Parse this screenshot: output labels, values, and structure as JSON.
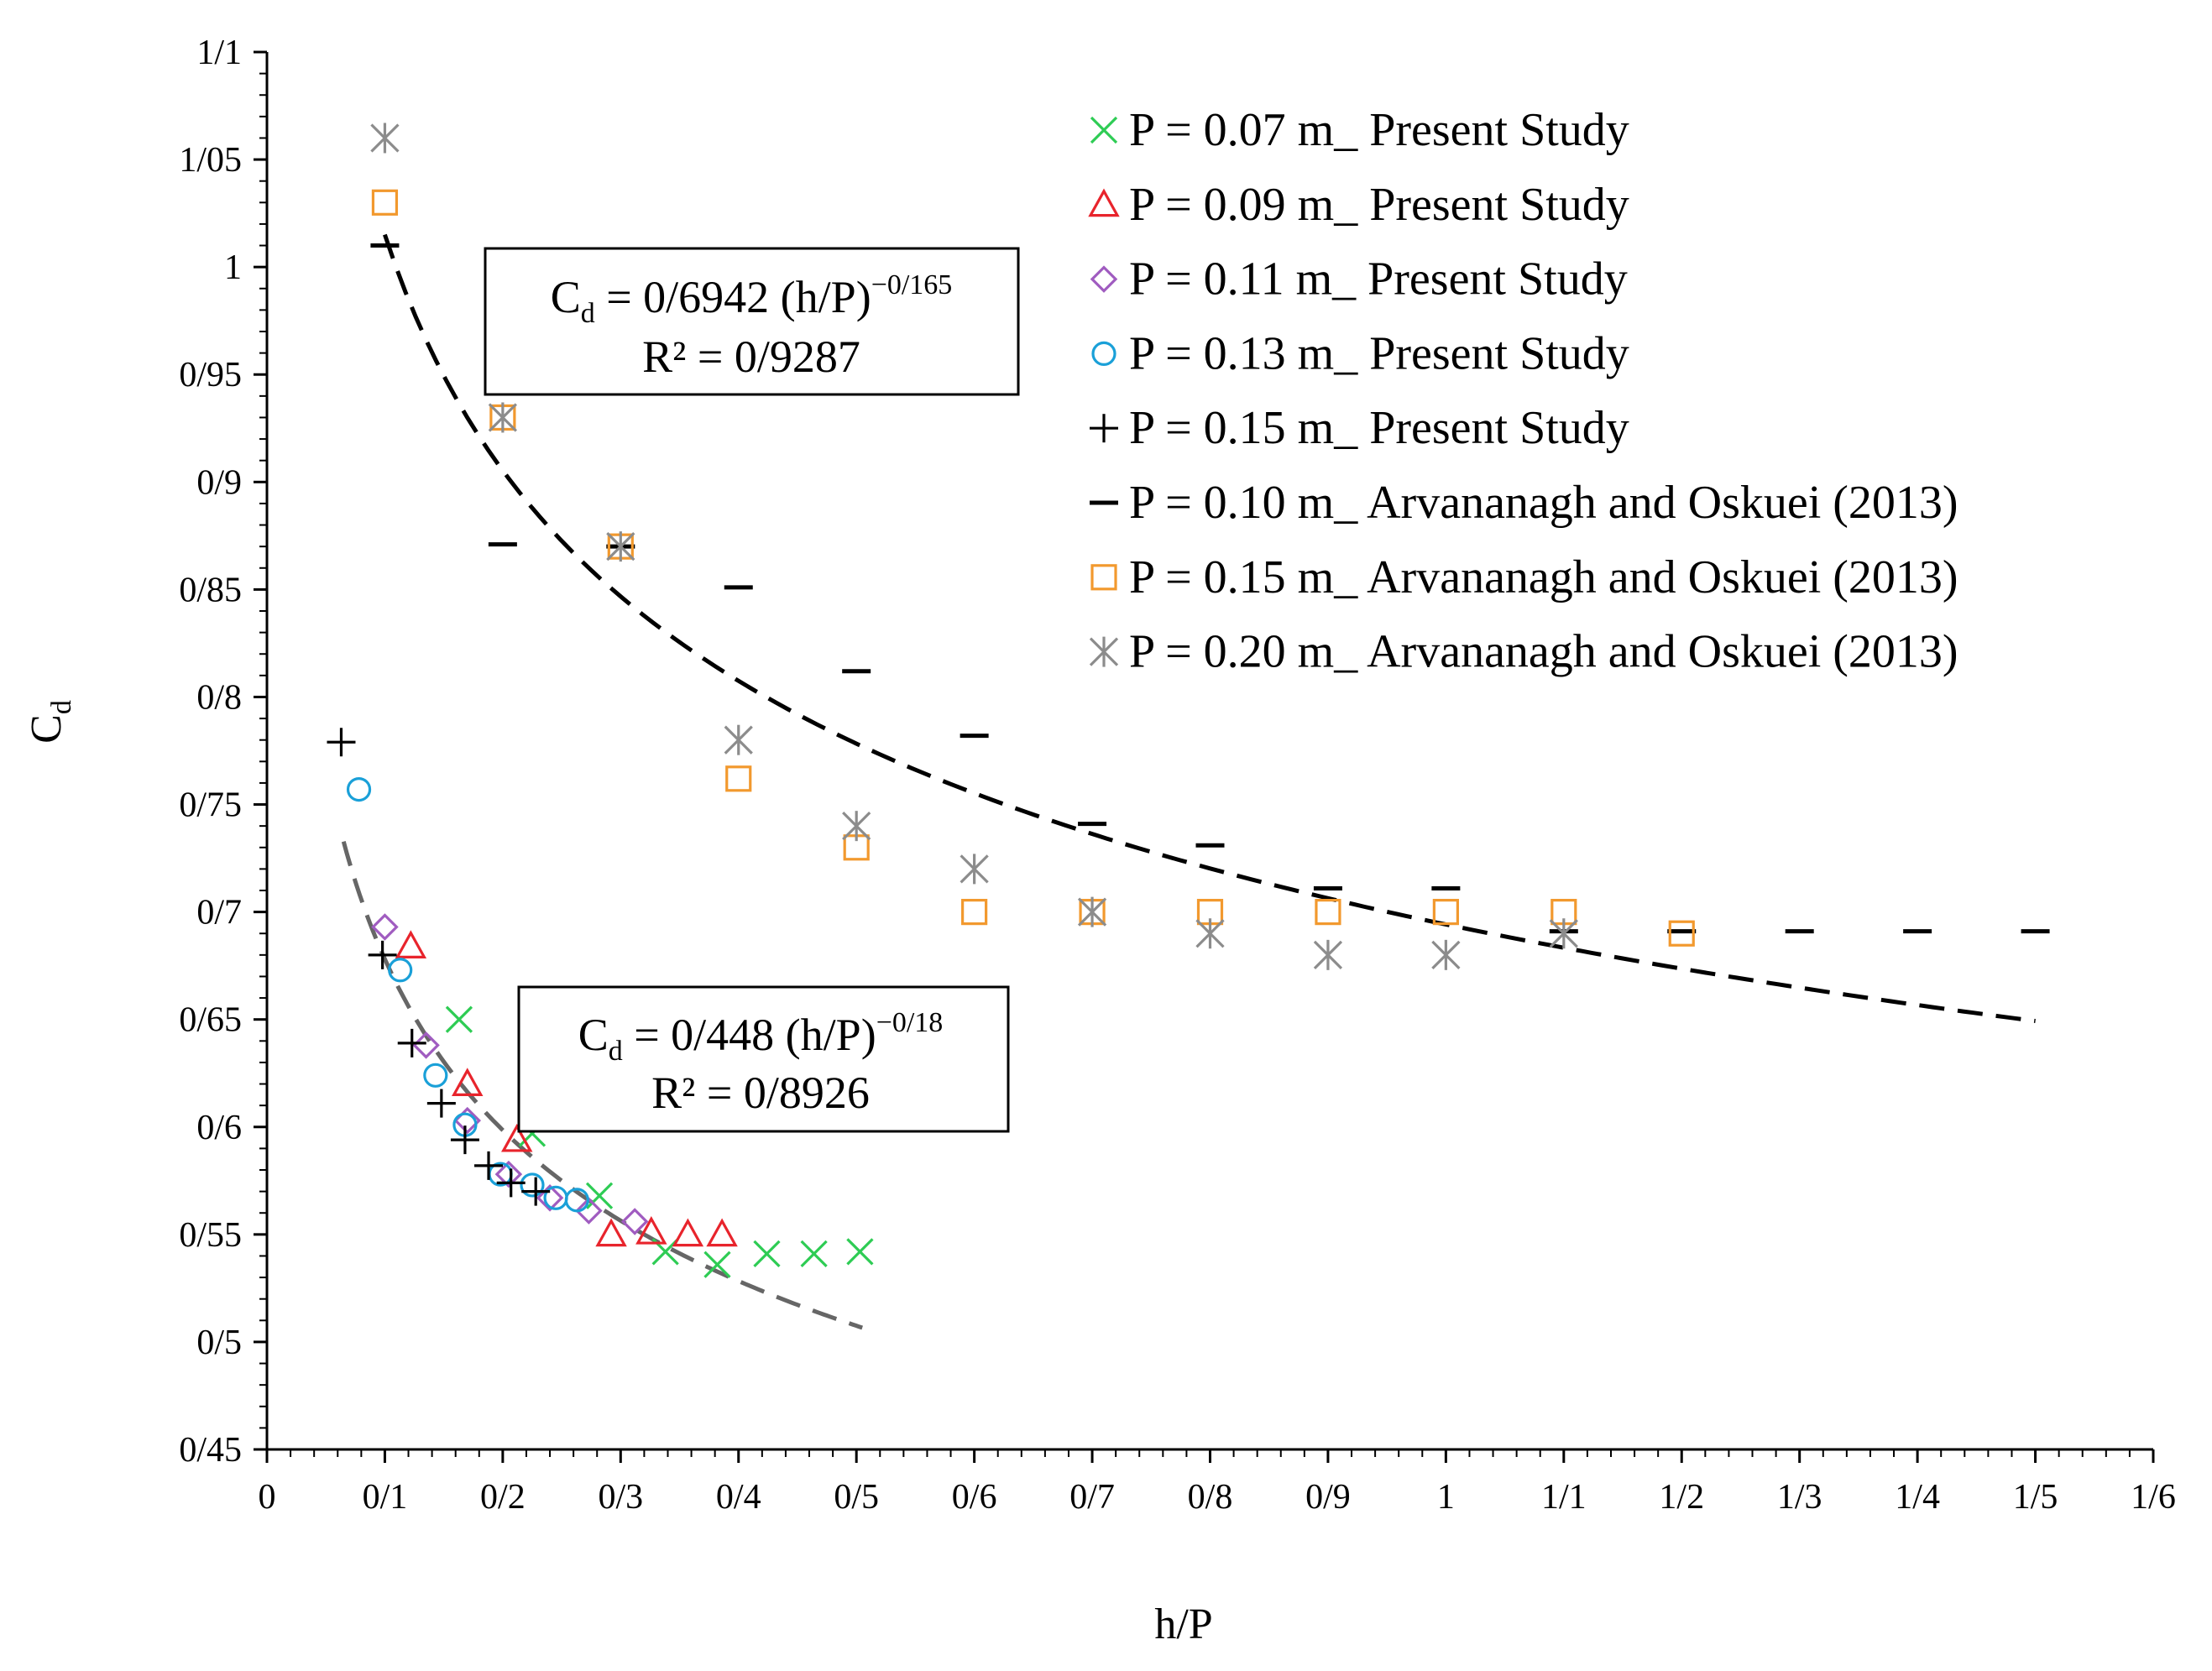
{
  "chart_data": {
    "type": "scatter",
    "xlabel": "h/P",
    "ylabel": {
      "main": "C",
      "sub": "d"
    },
    "xlim": [
      0,
      1.6
    ],
    "ylim": [
      0.45,
      1.1
    ],
    "x_ticks": [
      {
        "v": 0,
        "label": "0"
      },
      {
        "v": 0.1,
        "label": "0/1"
      },
      {
        "v": 0.2,
        "label": "0/2"
      },
      {
        "v": 0.3,
        "label": "0/3"
      },
      {
        "v": 0.4,
        "label": "0/4"
      },
      {
        "v": 0.5,
        "label": "0/5"
      },
      {
        "v": 0.6,
        "label": "0/6"
      },
      {
        "v": 0.7,
        "label": "0/7"
      },
      {
        "v": 0.8,
        "label": "0/8"
      },
      {
        "v": 0.9,
        "label": "0/9"
      },
      {
        "v": 1.0,
        "label": "1"
      },
      {
        "v": 1.1,
        "label": "1/1"
      },
      {
        "v": 1.2,
        "label": "1/2"
      },
      {
        "v": 1.3,
        "label": "1/3"
      },
      {
        "v": 1.4,
        "label": "1/4"
      },
      {
        "v": 1.5,
        "label": "1/5"
      },
      {
        "v": 1.6,
        "label": "1/6"
      }
    ],
    "y_ticks": [
      {
        "v": 0.45,
        "label": "0/45"
      },
      {
        "v": 0.5,
        "label": "0/5"
      },
      {
        "v": 0.55,
        "label": "0/55"
      },
      {
        "v": 0.6,
        "label": "0/6"
      },
      {
        "v": 0.65,
        "label": "0/65"
      },
      {
        "v": 0.7,
        "label": "0/7"
      },
      {
        "v": 0.75,
        "label": "0/75"
      },
      {
        "v": 0.8,
        "label": "0/8"
      },
      {
        "v": 0.85,
        "label": "0/85"
      },
      {
        "v": 0.9,
        "label": "0/9"
      },
      {
        "v": 0.95,
        "label": "0/95"
      },
      {
        "v": 1.0,
        "label": "1"
      },
      {
        "v": 1.05,
        "label": "1/05"
      },
      {
        "v": 1.1,
        "label": "1/1"
      }
    ],
    "series": [
      {
        "name": "P = 0.07 m_ Present Study",
        "marker": "x",
        "color": "#2ecc54",
        "points": [
          [
            0.163,
            0.65
          ],
          [
            0.225,
            0.597
          ],
          [
            0.282,
            0.568
          ],
          [
            0.338,
            0.542
          ],
          [
            0.382,
            0.536
          ],
          [
            0.424,
            0.541
          ],
          [
            0.464,
            0.541
          ],
          [
            0.503,
            0.542
          ]
        ]
      },
      {
        "name": "P = 0.09 m_ Present Study",
        "marker": "triangle",
        "color": "#e8242c",
        "points": [
          [
            0.122,
            0.684
          ],
          [
            0.17,
            0.62
          ],
          [
            0.212,
            0.594
          ],
          [
            0.292,
            0.55
          ],
          [
            0.326,
            0.551
          ],
          [
            0.357,
            0.55
          ],
          [
            0.386,
            0.55
          ]
        ]
      },
      {
        "name": "P = 0.11 m_ Present Study",
        "marker": "diamond",
        "color": "#a05cc0",
        "points": [
          [
            0.1,
            0.693
          ],
          [
            0.135,
            0.638
          ],
          [
            0.17,
            0.603
          ],
          [
            0.205,
            0.578
          ],
          [
            0.24,
            0.567
          ],
          [
            0.273,
            0.561
          ],
          [
            0.312,
            0.556
          ]
        ]
      },
      {
        "name": "P = 0.13 m_ Present Study",
        "marker": "circle",
        "color": "#1aa0d8",
        "points": [
          [
            0.078,
            0.757
          ],
          [
            0.113,
            0.673
          ],
          [
            0.143,
            0.624
          ],
          [
            0.168,
            0.601
          ],
          [
            0.198,
            0.578
          ],
          [
            0.225,
            0.573
          ],
          [
            0.245,
            0.567
          ],
          [
            0.263,
            0.566
          ]
        ]
      },
      {
        "name": "P = 0.15 m_ Present Study",
        "marker": "plus",
        "color": "#000000",
        "points": [
          [
            0.063,
            0.779
          ],
          [
            0.098,
            0.68
          ],
          [
            0.123,
            0.639
          ],
          [
            0.148,
            0.611
          ],
          [
            0.168,
            0.594
          ],
          [
            0.188,
            0.582
          ],
          [
            0.207,
            0.574
          ],
          [
            0.228,
            0.57
          ]
        ]
      },
      {
        "name": "P = 0.10 m_ Arvananagh and Oskuei (2013)",
        "marker": "dash",
        "color": "#000000",
        "points": [
          [
            0.1,
            1.01
          ],
          [
            0.2,
            0.871
          ],
          [
            0.3,
            0.87
          ],
          [
            0.4,
            0.851
          ],
          [
            0.5,
            0.812
          ],
          [
            0.6,
            0.782
          ],
          [
            0.7,
            0.741
          ],
          [
            0.8,
            0.731
          ],
          [
            0.9,
            0.711
          ],
          [
            1.0,
            0.711
          ],
          [
            1.1,
            0.691
          ],
          [
            1.2,
            0.691
          ],
          [
            1.3,
            0.691
          ],
          [
            1.4,
            0.691
          ],
          [
            1.5,
            0.691
          ]
        ]
      },
      {
        "name": "P = 0.15 m_ Arvananagh and Oskuei (2013)",
        "marker": "square",
        "color": "#f2992e",
        "points": [
          [
            0.1,
            1.03
          ],
          [
            0.2,
            0.93
          ],
          [
            0.3,
            0.87
          ],
          [
            0.4,
            0.762
          ],
          [
            0.5,
            0.73
          ],
          [
            0.6,
            0.7
          ],
          [
            0.7,
            0.7
          ],
          [
            0.8,
            0.7
          ],
          [
            0.9,
            0.7
          ],
          [
            1.0,
            0.7
          ],
          [
            1.1,
            0.7
          ],
          [
            1.2,
            0.69
          ]
        ]
      },
      {
        "name": "P = 0.20 m_ Arvananagh and Oskuei (2013)",
        "marker": "asterisk",
        "color": "#8c8c8c",
        "points": [
          [
            0.1,
            1.06
          ],
          [
            0.2,
            0.93
          ],
          [
            0.3,
            0.87
          ],
          [
            0.4,
            0.78
          ],
          [
            0.5,
            0.74
          ],
          [
            0.6,
            0.72
          ],
          [
            0.7,
            0.7
          ],
          [
            0.8,
            0.69
          ],
          [
            0.9,
            0.68
          ],
          [
            1.0,
            0.68
          ],
          [
            1.1,
            0.69
          ]
        ]
      }
    ],
    "trendlines": [
      {
        "name": "upper-power-fit",
        "a": 0.6942,
        "b": -0.165,
        "x_from": 0.1,
        "x_to": 1.5,
        "color": "#000000"
      },
      {
        "name": "lower-power-fit",
        "a": 0.448,
        "b": -0.18,
        "x_from": 0.065,
        "x_to": 0.505,
        "color": "#666666"
      }
    ],
    "annotations": [
      {
        "name": "upper-equation",
        "cd": "C",
        "cd_sub": "d",
        "eq": " = 0/6942 (h/P)",
        "exp": "−0/165",
        "r2": "R² = 0/9287"
      },
      {
        "name": "lower-equation",
        "cd": "C",
        "cd_sub": "d",
        "eq": " = 0/448 (h/P)",
        "exp": "−0/18",
        "r2": "R² = 0/8926"
      }
    ]
  }
}
